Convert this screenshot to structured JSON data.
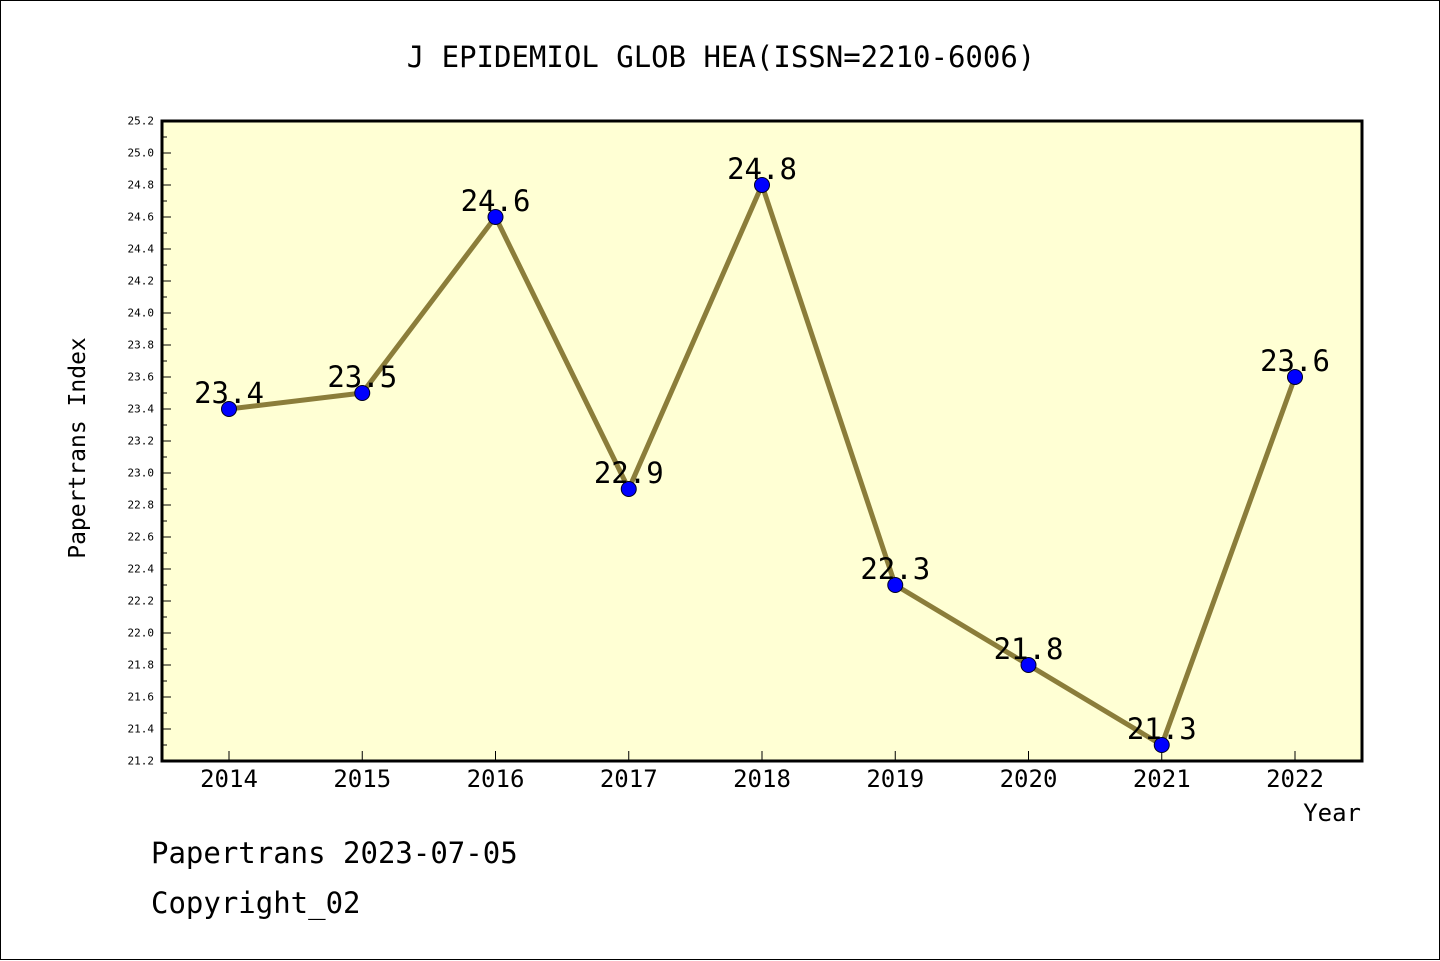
{
  "chart_data": {
    "type": "line",
    "title": "J EPIDEMIOL GLOB HEA(ISSN=2210-6006)",
    "xlabel": "Year",
    "ylabel": "Papertrans Index",
    "categories": [
      "2014",
      "2015",
      "2016",
      "2017",
      "2018",
      "2019",
      "2020",
      "2021",
      "2022"
    ],
    "series": [
      {
        "values": [
          23.4,
          23.5,
          24.6,
          22.9,
          24.8,
          22.3,
          21.8,
          21.3,
          23.6
        ],
        "labels": [
          "23.4",
          "23.5",
          "24.6",
          "22.9",
          "24.8",
          "22.3",
          "21.8",
          "21.3",
          "23.6"
        ]
      }
    ],
    "ylim": [
      21.2,
      25.2
    ],
    "yticks": [
      "21.2",
      "21.4",
      "21.6",
      "21.8",
      "22.0",
      "22.2",
      "22.4",
      "22.6",
      "22.8",
      "23.0",
      "23.2",
      "23.4",
      "23.6",
      "23.8",
      "24.0",
      "24.2",
      "24.4",
      "24.6",
      "24.8",
      "25.0",
      "25.2"
    ],
    "grid": false,
    "legend": "none",
    "colors": {
      "plot_background": "#ffffd4",
      "line": "#8b7d3a",
      "marker": "#0000ff",
      "axis": "#000000"
    }
  },
  "footer": {
    "date_text": "Papertrans 2023-07-05",
    "copyright_text": "Copyright_02"
  }
}
